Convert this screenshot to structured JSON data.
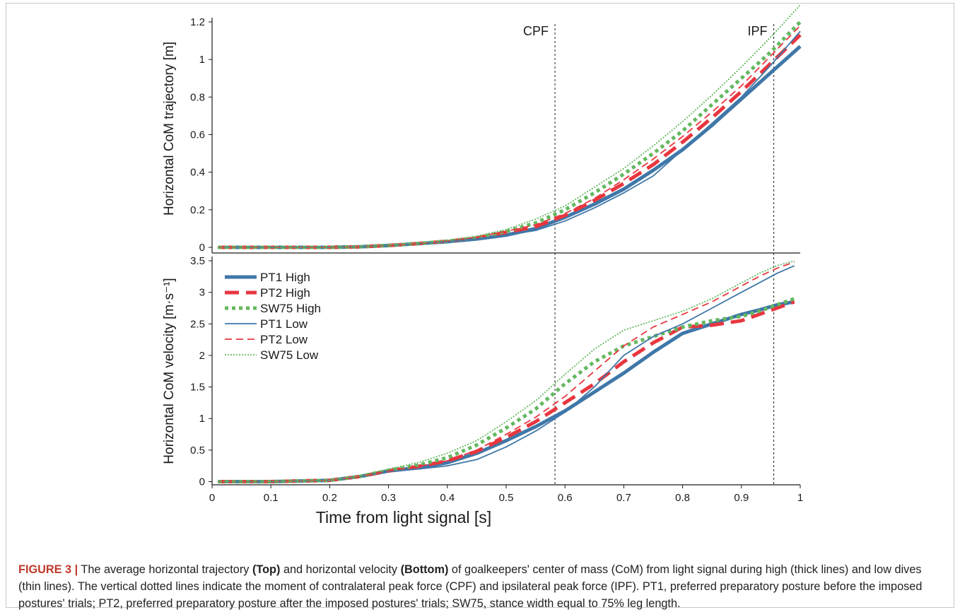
{
  "chart_data": [
    {
      "type": "line",
      "panel": "Top",
      "ylabel": "Horizontal CoM trajectory [m]",
      "xlim": [
        0,
        1
      ],
      "ylim": [
        -0.03,
        1.2
      ],
      "yticks": [
        "0",
        "0.2",
        "0.4",
        "0.6",
        "0.8",
        "1",
        "1.2"
      ],
      "x": [
        0.01,
        0.1,
        0.2,
        0.25,
        0.3,
        0.35,
        0.4,
        0.45,
        0.5,
        0.55,
        0.6,
        0.65,
        0.7,
        0.75,
        0.8,
        0.85,
        0.9,
        0.95,
        1.0
      ],
      "series": [
        {
          "name": "PT1 High",
          "values": [
            0,
            0,
            0,
            0.003,
            0.01,
            0.02,
            0.03,
            0.045,
            0.065,
            0.1,
            0.16,
            0.23,
            0.31,
            0.41,
            0.52,
            0.65,
            0.79,
            0.93,
            1.07
          ]
        },
        {
          "name": "PT2 High",
          "values": [
            0,
            0,
            0,
            0.003,
            0.01,
            0.02,
            0.033,
            0.05,
            0.08,
            0.11,
            0.17,
            0.25,
            0.34,
            0.44,
            0.56,
            0.69,
            0.83,
            0.98,
            1.13
          ]
        },
        {
          "name": "SW75 High",
          "values": [
            0,
            0,
            0,
            0.003,
            0.01,
            0.02,
            0.033,
            0.05,
            0.085,
            0.13,
            0.2,
            0.29,
            0.39,
            0.5,
            0.62,
            0.76,
            0.9,
            1.04,
            1.2
          ]
        },
        {
          "name": "PT1 Low",
          "values": [
            0,
            0,
            0,
            0.003,
            0.01,
            0.02,
            0.03,
            0.045,
            0.065,
            0.09,
            0.14,
            0.21,
            0.29,
            0.38,
            0.52,
            0.66,
            0.8,
            0.97,
            1.15
          ]
        },
        {
          "name": "PT2 Low",
          "values": [
            0,
            0,
            0,
            0.003,
            0.01,
            0.02,
            0.035,
            0.055,
            0.085,
            0.12,
            0.18,
            0.26,
            0.36,
            0.47,
            0.59,
            0.72,
            0.86,
            1.02,
            1.18
          ]
        },
        {
          "name": "SW75 Low",
          "values": [
            0,
            0,
            0,
            0.003,
            0.012,
            0.022,
            0.037,
            0.06,
            0.095,
            0.15,
            0.22,
            0.32,
            0.42,
            0.54,
            0.67,
            0.81,
            0.96,
            1.12,
            1.29
          ]
        }
      ]
    },
    {
      "type": "line",
      "panel": "Bottom",
      "ylabel": "Horizontal CoM velocity [m·s⁻¹]",
      "xlabel": "Time from light signal [s]",
      "xlim": [
        0,
        1
      ],
      "ylim": [
        -0.05,
        3.5
      ],
      "yticks": [
        "0",
        "0.5",
        "1",
        "1.5",
        "2",
        "2.5",
        "3",
        "3.5"
      ],
      "xticks": [
        "0",
        "0.1",
        "0.2",
        "0.3",
        "0.4",
        "0.5",
        "0.6",
        "0.7",
        "0.8",
        "0.9",
        "1"
      ],
      "legend": "top-left",
      "x": [
        0.01,
        0.1,
        0.2,
        0.25,
        0.3,
        0.35,
        0.4,
        0.45,
        0.5,
        0.55,
        0.6,
        0.65,
        0.7,
        0.75,
        0.8,
        0.85,
        0.9,
        0.93,
        0.96,
        0.99
      ],
      "series": [
        {
          "name": "PT1 High",
          "values": [
            0,
            0,
            0.02,
            0.08,
            0.17,
            0.22,
            0.3,
            0.45,
            0.65,
            0.87,
            1.12,
            1.42,
            1.72,
            2.05,
            2.35,
            2.5,
            2.65,
            2.72,
            2.8,
            2.85
          ]
        },
        {
          "name": "PT2 High",
          "values": [
            0,
            0,
            0.02,
            0.08,
            0.17,
            0.24,
            0.33,
            0.48,
            0.7,
            0.95,
            1.25,
            1.55,
            1.9,
            2.2,
            2.45,
            2.48,
            2.55,
            2.65,
            2.75,
            2.85
          ]
        },
        {
          "name": "SW75 High",
          "values": [
            0,
            0,
            0.02,
            0.08,
            0.18,
            0.26,
            0.38,
            0.58,
            0.85,
            1.15,
            1.55,
            1.9,
            2.15,
            2.3,
            2.45,
            2.55,
            2.62,
            2.7,
            2.8,
            2.9
          ]
        },
        {
          "name": "PT1 Low",
          "values": [
            0,
            0,
            0.02,
            0.08,
            0.16,
            0.2,
            0.25,
            0.35,
            0.55,
            0.8,
            1.1,
            1.5,
            2.0,
            2.3,
            2.5,
            2.75,
            3.0,
            3.15,
            3.3,
            3.42
          ]
        },
        {
          "name": "PT2 Low",
          "values": [
            0,
            0,
            0.02,
            0.08,
            0.17,
            0.24,
            0.33,
            0.5,
            0.75,
            1.02,
            1.35,
            1.75,
            2.15,
            2.45,
            2.65,
            2.85,
            3.1,
            3.25,
            3.38,
            3.48
          ]
        },
        {
          "name": "SW75 Low",
          "values": [
            0,
            0,
            0.02,
            0.09,
            0.2,
            0.3,
            0.45,
            0.65,
            0.95,
            1.28,
            1.7,
            2.1,
            2.4,
            2.55,
            2.7,
            2.9,
            3.15,
            3.3,
            3.42,
            3.5
          ]
        }
      ]
    }
  ],
  "markers": [
    {
      "label": "CPF",
      "x": 0.583
    },
    {
      "label": "IPF",
      "x": 0.955
    }
  ],
  "series_styles": {
    "PT1 High": {
      "color": "#3f77a8",
      "width": 5,
      "dash": ""
    },
    "PT2 High": {
      "color": "#e8363f",
      "width": 5,
      "dash": "20,10"
    },
    "SW75 High": {
      "color": "#63b85f",
      "width": 5,
      "dash": "5,5"
    },
    "PT1 Low": {
      "color": "#3f77a8",
      "width": 1.8,
      "dash": ""
    },
    "PT2 Low": {
      "color": "#e8363f",
      "width": 1.8,
      "dash": "10,6"
    },
    "SW75 Low": {
      "color": "#63b85f",
      "width": 1.8,
      "dash": "2,2"
    }
  },
  "caption": {
    "figure_label": "FIGURE 3 |",
    "t1": " The average horizontal trajectory ",
    "b1": "(Top)",
    "t2": " and horizontal velocity ",
    "b2": "(Bottom)",
    "t3": " of goalkeepers' center of mass (CoM) from light signal during high (thick lines) and low dives (thin lines). The vertical dotted lines indicate the moment of contralateral peak force (CPF) and ipsilateral peak force (IPF). PT1, preferred preparatory posture before the imposed postures' trials; PT2, preferred preparatory posture after the imposed postures' trials; SW75, stance width equal to 75% leg length."
  }
}
